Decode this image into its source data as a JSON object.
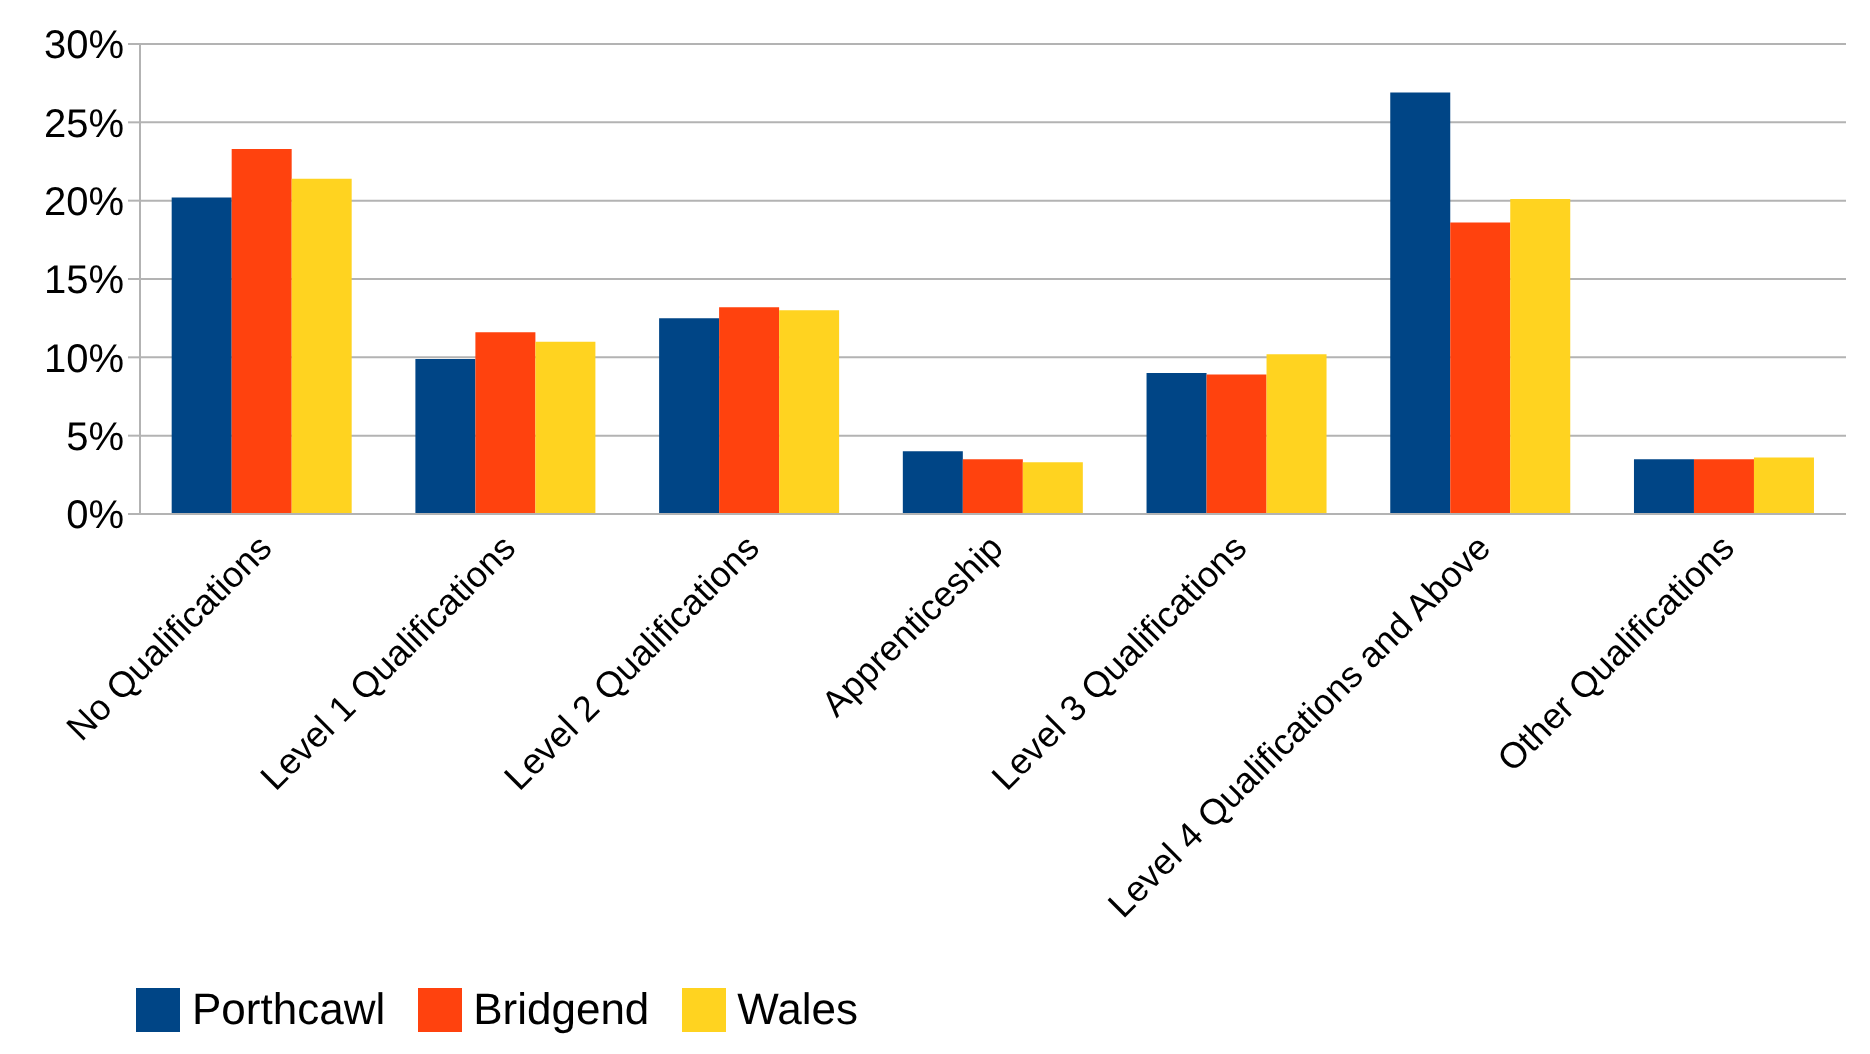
{
  "chart_data": {
    "type": "bar",
    "categories": [
      "No Qualifications",
      "Level 1 Qualifications",
      "Level 2 Qualifications",
      "Apprenticeship",
      "Level 3 Qualifications",
      "Level 4 Qualifications and Above",
      "Other Qualifications"
    ],
    "series": [
      {
        "name": "Porthcawl",
        "color": "#004586",
        "values": [
          20.2,
          9.9,
          12.5,
          4.0,
          9.0,
          26.9,
          3.5
        ]
      },
      {
        "name": "Bridgend",
        "color": "#ff420e",
        "values": [
          23.3,
          11.6,
          13.2,
          3.5,
          8.9,
          18.6,
          3.5
        ]
      },
      {
        "name": "Wales",
        "color": "#ffd320",
        "values": [
          21.4,
          11.0,
          13.0,
          3.3,
          10.2,
          20.1,
          3.6
        ]
      }
    ],
    "ylim": [
      0,
      30
    ],
    "yticks": [
      {
        "value": 0,
        "label": "0%"
      },
      {
        "value": 5,
        "label": "5%"
      },
      {
        "value": 10,
        "label": "10%"
      },
      {
        "value": 15,
        "label": "15%"
      },
      {
        "value": 20,
        "label": "20%"
      },
      {
        "value": 25,
        "label": "25%"
      },
      {
        "value": 30,
        "label": "30%"
      }
    ],
    "grid": "y",
    "legend": "bottom left"
  }
}
